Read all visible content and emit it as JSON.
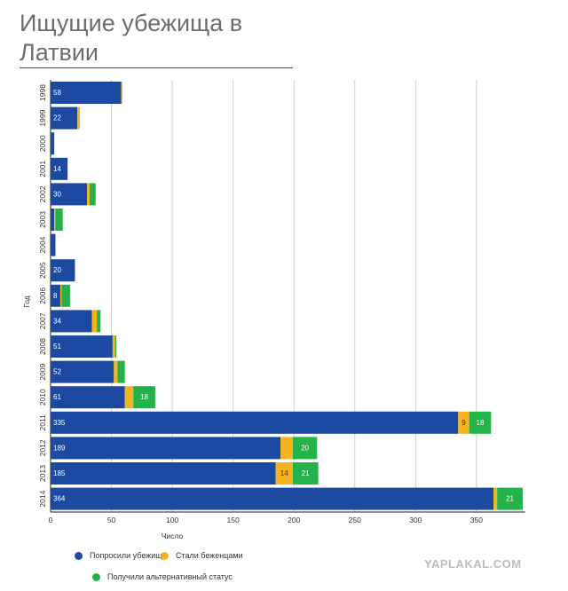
{
  "title_line1": "Ищущие убежища в",
  "title_line2": "Латвии",
  "watermark": "YAPLAKAL.COM",
  "colors": {
    "asylum": "#1c4aa0",
    "refugee": "#f5b41d",
    "alt": "#24b24a"
  },
  "chart_data": {
    "type": "bar",
    "orientation": "horizontal",
    "stacked": true,
    "ylabel": "Год",
    "xlabel": "Число",
    "xlim": [
      0,
      390
    ],
    "xticks": [
      0,
      50,
      100,
      150,
      200,
      250,
      300,
      350
    ],
    "grid": true,
    "legend_placement": "bottom",
    "categories": [
      "1998",
      "1999",
      "2000",
      "2001",
      "2002",
      "2003",
      "2004",
      "2005",
      "2006",
      "2007",
      "2008",
      "2009",
      "2010",
      "2011",
      "2012",
      "2013",
      "2014"
    ],
    "series": [
      {
        "name": "Попросили убежища",
        "values": [
          58,
          22,
          3,
          14,
          30,
          3,
          4,
          20,
          8,
          34,
          51,
          52,
          61,
          335,
          189,
          185,
          364
        ],
        "labels": [
          "58",
          "22",
          "",
          "14",
          "30",
          "",
          "",
          "20",
          "8",
          "34",
          "51",
          "52",
          "61",
          "335",
          "189",
          "185",
          "364"
        ]
      },
      {
        "name": "Стали беженцами",
        "values": [
          1,
          2,
          0,
          0,
          2,
          1,
          0,
          0,
          1,
          4,
          2,
          3,
          7,
          9,
          10,
          14,
          3
        ],
        "labels": [
          "",
          "",
          "",
          "",
          "",
          "",
          "",
          "",
          "",
          "",
          "",
          "",
          "",
          "9",
          "",
          "14",
          ""
        ]
      },
      {
        "name": "Получили альтернативный статус",
        "values": [
          0,
          0,
          0,
          0,
          5,
          6,
          0,
          0,
          7,
          3,
          1,
          6,
          18,
          18,
          20,
          21,
          21
        ],
        "labels": [
          "",
          "",
          "",
          "",
          "",
          "",
          "",
          "",
          "",
          "",
          "",
          "",
          "18",
          "18",
          "20",
          "21",
          "21"
        ]
      }
    ]
  }
}
